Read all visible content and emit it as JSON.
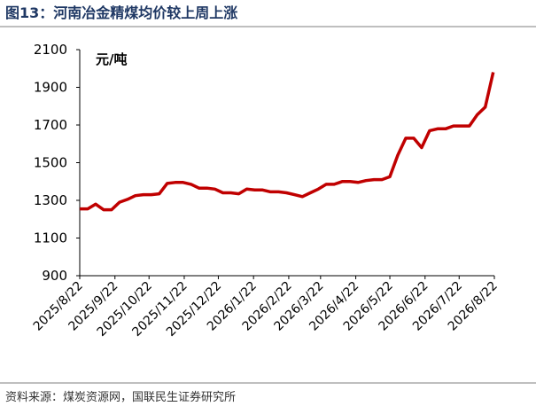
{
  "chart_data": {
    "type": "line",
    "title": "图13：河南冶金精煤均价较上周上涨",
    "y_label": "元/吨",
    "source": "资料来源：煤炭资源网，国联民生证券研究所",
    "x": [
      "2025/8/22",
      "2025/8/29",
      "2025/9/5",
      "2025/9/12",
      "2025/9/19",
      "2025/9/26",
      "2025/10/3",
      "2025/10/10",
      "2025/10/17",
      "2025/10/24",
      "2025/10/31",
      "2025/11/7",
      "2025/11/14",
      "2025/11/21",
      "2025/11/28",
      "2025/12/5",
      "2025/12/12",
      "2025/12/19",
      "2025/12/26",
      "2026/1/2",
      "2026/1/9",
      "2026/1/16",
      "2026/1/23",
      "2026/1/30",
      "2026/2/6",
      "2026/2/13",
      "2026/2/20",
      "2026/2/27",
      "2026/3/6",
      "2026/3/13",
      "2026/3/20",
      "2026/3/27",
      "2026/4/3",
      "2026/4/10",
      "2026/4/17",
      "2026/4/24",
      "2026/5/1",
      "2026/5/8",
      "2026/5/15",
      "2026/5/22",
      "2026/5/29",
      "2026/6/5",
      "2026/6/12",
      "2026/6/19",
      "2026/6/26",
      "2026/7/3",
      "2026/7/10",
      "2026/7/17",
      "2026/7/24",
      "2026/7/31",
      "2026/8/7",
      "2026/8/14",
      "2026/8/21"
    ],
    "series": [
      {
        "name": "河南冶金精煤均价",
        "color": "#c00000",
        "values": [
          1255,
          1255,
          1280,
          1250,
          1250,
          1290,
          1305,
          1325,
          1330,
          1330,
          1335,
          1390,
          1395,
          1395,
          1385,
          1365,
          1365,
          1360,
          1340,
          1340,
          1335,
          1360,
          1355,
          1355,
          1345,
          1345,
          1340,
          1330,
          1320,
          1340,
          1360,
          1385,
          1385,
          1400,
          1400,
          1395,
          1405,
          1410,
          1410,
          1425,
          1540,
          1630,
          1630,
          1580,
          1670,
          1680,
          1680,
          1695,
          1695,
          1695,
          1755,
          1795,
          1980
        ]
      }
    ],
    "xlim": [
      "2025/8/22",
      "2026/8/22"
    ],
    "xticks": [
      "2025/8/22",
      "2025/9/22",
      "2025/10/22",
      "2025/11/22",
      "2025/12/22",
      "2026/1/22",
      "2026/2/22",
      "2026/3/22",
      "2026/4/22",
      "2026/5/22",
      "2026/6/22",
      "2026/7/22",
      "2026/8/22"
    ],
    "ylim": [
      900,
      2100
    ],
    "yticks": [
      900,
      1100,
      1300,
      1500,
      1700,
      1900,
      2100
    ],
    "grid": false
  }
}
